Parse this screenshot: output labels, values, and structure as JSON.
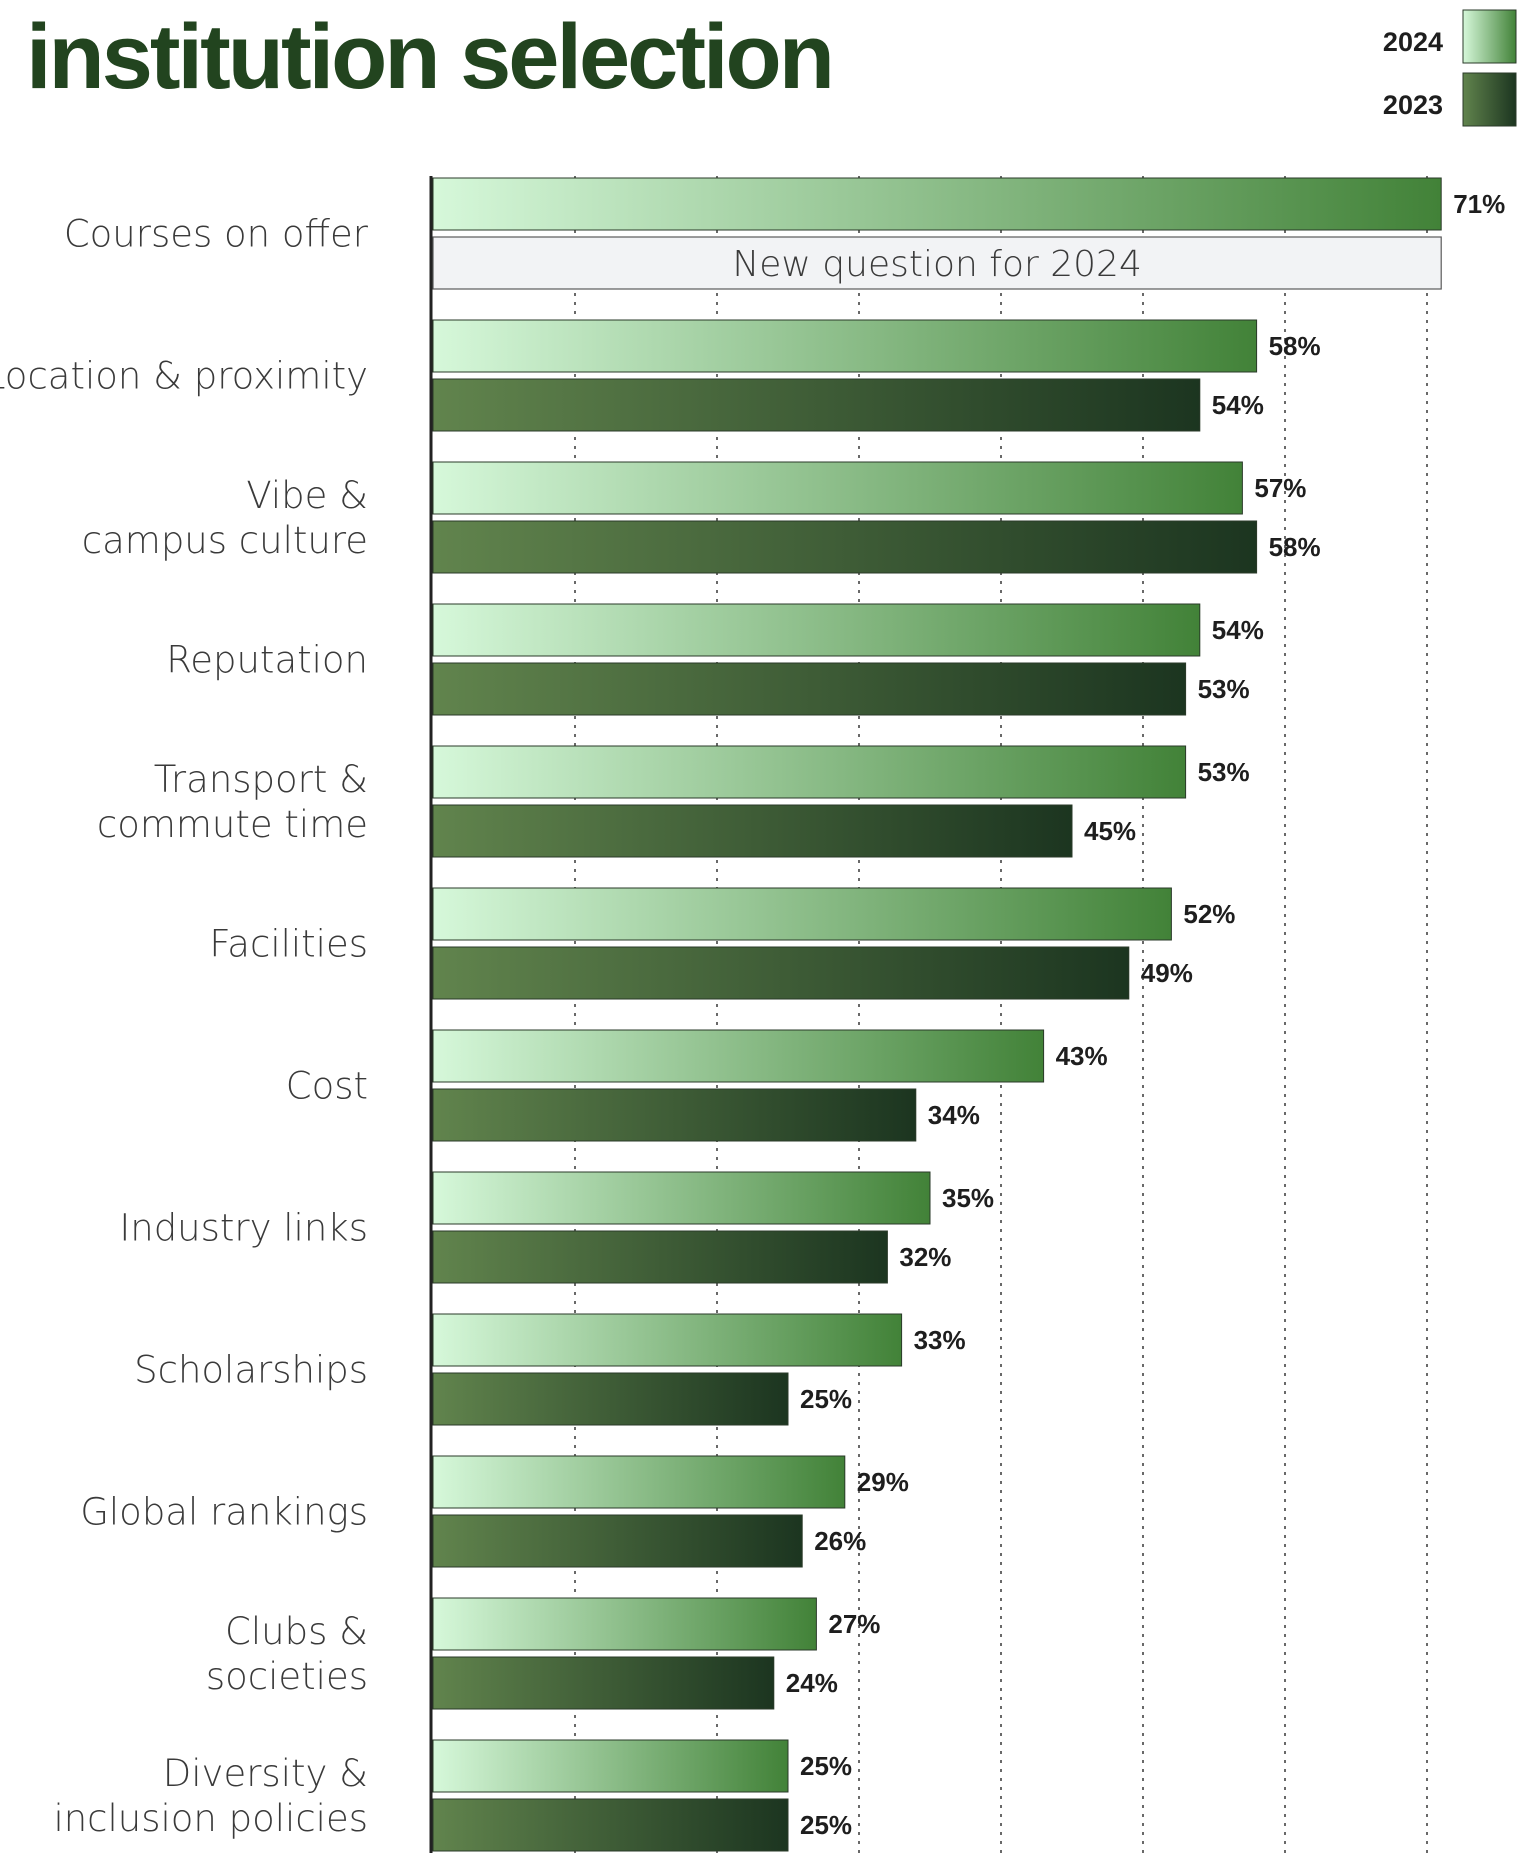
{
  "colors": {
    "title": "#22441f",
    "bar_2024_start": "#d6f8da",
    "bar_2024_end": "#428238",
    "bar_2023_start": "#61844d",
    "bar_2023_end": "#1c3520",
    "note_fill": "#f2f3f5",
    "axis": "#222222",
    "grid": "#444444"
  },
  "chart_data": {
    "type": "bar",
    "orientation": "horizontal",
    "title_lines": [
      "institution selection"
    ],
    "xlim": [
      0,
      70
    ],
    "grid": true,
    "legend_position": "top-right",
    "series": [
      {
        "name": "2024",
        "values": [
          71,
          58,
          57,
          54,
          53,
          52,
          43,
          35,
          33,
          29,
          27,
          25
        ]
      },
      {
        "name": "2023",
        "values": [
          null,
          54,
          58,
          53,
          45,
          49,
          34,
          32,
          25,
          26,
          24,
          25
        ]
      }
    ],
    "categories": [
      {
        "lines": [
          "Courses on offer"
        ]
      },
      {
        "lines": [
          "Location & proximity"
        ]
      },
      {
        "lines": [
          "Vibe &",
          "campus culture"
        ]
      },
      {
        "lines": [
          "Reputation"
        ]
      },
      {
        "lines": [
          "Transport &",
          "commute time"
        ]
      },
      {
        "lines": [
          "Facilities"
        ]
      },
      {
        "lines": [
          "Cost"
        ]
      },
      {
        "lines": [
          "Industry links"
        ]
      },
      {
        "lines": [
          "Scholarships"
        ]
      },
      {
        "lines": [
          "Global rankings"
        ]
      },
      {
        "lines": [
          "Clubs &",
          "societies"
        ]
      },
      {
        "lines": [
          "Diversity &",
          "inclusion policies"
        ]
      }
    ],
    "value_suffix": "%",
    "note": {
      "category_index": 0,
      "series_index": 1,
      "text": "New question for 2024"
    }
  }
}
